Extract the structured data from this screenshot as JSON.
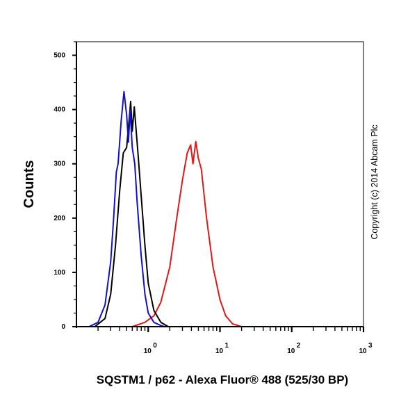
{
  "chart_data": {
    "type": "line",
    "xlabel": "SQSTM1 / p62 - Alexa Fluor® 488 (525/30 BP)",
    "ylabel": "Counts",
    "annotation": "Copyright (c) 2014 Abcam Plc",
    "x_scale": "log",
    "xlim": [
      0.1,
      1000
    ],
    "ylim": [
      0,
      525
    ],
    "x_ticks": [
      {
        "exp": "0",
        "base": "10"
      },
      {
        "exp": "1",
        "base": "10"
      },
      {
        "exp": "2",
        "base": "10"
      },
      {
        "exp": "3",
        "base": "10"
      }
    ],
    "y_ticks": [
      "0",
      "100",
      "200",
      "300",
      "400",
      "500"
    ],
    "grid": false,
    "series": [
      {
        "color": "#1010d0",
        "x": [
          0.1,
          0.15,
          0.2,
          0.25,
          0.3,
          0.33,
          0.36,
          0.38,
          0.42,
          0.46,
          0.5,
          0.53,
          0.56,
          0.6,
          0.65,
          0.7,
          0.8,
          0.9,
          1.0,
          1.2,
          1.5,
          1.7,
          1000
        ],
        "y": [
          0,
          0,
          8,
          40,
          120,
          200,
          285,
          300,
          380,
          433,
          390,
          340,
          400,
          330,
          300,
          230,
          130,
          60,
          25,
          8,
          2,
          0,
          0
        ]
      },
      {
        "color": "#000000",
        "x": [
          0.1,
          0.18,
          0.25,
          0.3,
          0.35,
          0.4,
          0.45,
          0.5,
          0.55,
          0.57,
          0.6,
          0.64,
          0.68,
          0.72,
          0.8,
          0.9,
          1.0,
          1.2,
          1.5,
          1.9,
          1000
        ],
        "y": [
          0,
          0,
          15,
          60,
          150,
          250,
          320,
          330,
          390,
          415,
          360,
          405,
          360,
          320,
          240,
          150,
          80,
          30,
          8,
          0,
          0
        ]
      },
      {
        "color": "#e01818",
        "x": [
          0.1,
          0.6,
          0.9,
          1.2,
          1.5,
          2.0,
          2.5,
          3.0,
          3.5,
          3.9,
          4.2,
          4.6,
          5.0,
          5.5,
          6.5,
          8,
          10,
          12,
          15,
          20,
          1000
        ],
        "y": [
          0,
          0,
          8,
          20,
          45,
          110,
          200,
          270,
          320,
          335,
          300,
          341,
          310,
          290,
          200,
          110,
          50,
          20,
          5,
          0,
          0
        ]
      }
    ]
  }
}
